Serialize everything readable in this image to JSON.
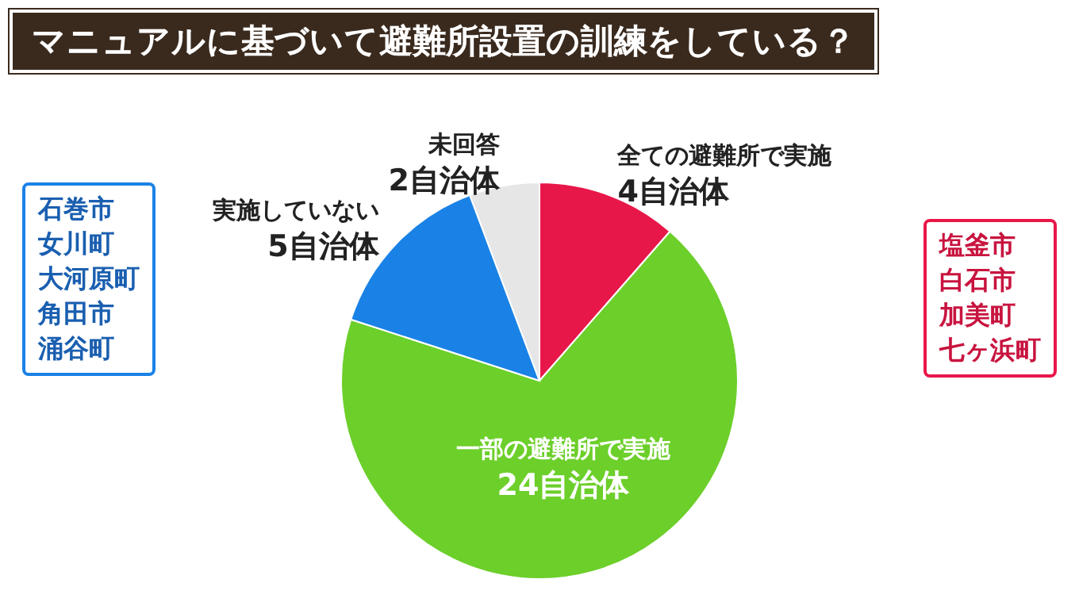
{
  "chart_data": {
    "type": "pie",
    "title": "マニュアルに基づいて避難所設置の訓練をしている？",
    "categories": [
      "全ての避難所で実施",
      "一部の避難所で実施",
      "実施していない",
      "未回答"
    ],
    "values": [
      4,
      24,
      5,
      2
    ],
    "colors": [
      "#e8174a",
      "#6ccf2a",
      "#1a82e6",
      "#e6e6e6"
    ],
    "value_labels": [
      "4自治体",
      "24自治体",
      "5自治体",
      "2自治体"
    ],
    "annotations": [
      "石巻市",
      "女川町",
      "大河原町",
      "角田市",
      "涌谷町",
      "塩釜市",
      "白石市",
      "加美町",
      "七ヶ浜町"
    ]
  }
}
